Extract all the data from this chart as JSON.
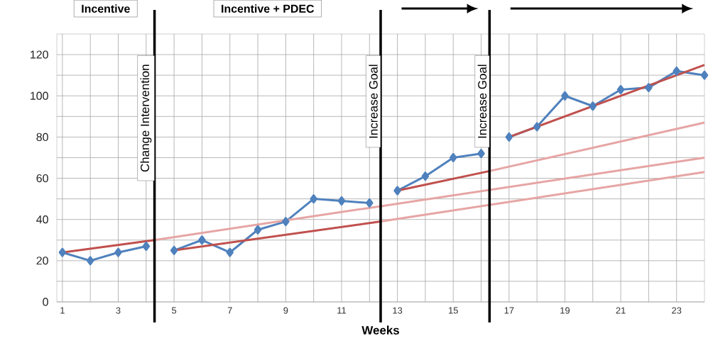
{
  "chart_data": {
    "type": "line",
    "xlabel": "Weeks",
    "xlim": [
      0.8,
      24
    ],
    "ylim": [
      0,
      130
    ],
    "xticks": [
      1,
      {
        "value": 2,
        "label": null
      },
      3,
      {
        "value": 4,
        "label": null
      },
      5,
      {
        "value": 6,
        "label": null
      },
      7,
      {
        "value": 8,
        "label": null
      },
      9,
      {
        "value": 10,
        "label": null
      },
      11,
      {
        "value": 12,
        "label": null
      },
      13,
      {
        "value": 14,
        "label": null
      },
      15,
      {
        "value": 16,
        "label": null
      },
      17,
      {
        "value": 18,
        "label": null
      },
      19,
      {
        "value": 20,
        "label": null
      },
      21,
      {
        "value": 22,
        "label": null
      },
      23
    ],
    "yticks": [
      0,
      {
        "value": 10,
        "label": null
      },
      20,
      {
        "value": 30,
        "label": null
      },
      40,
      {
        "value": 50,
        "label": null
      },
      60,
      {
        "value": 70,
        "label": null
      },
      80,
      {
        "value": 90,
        "label": null
      },
      100,
      {
        "value": 110,
        "label": null
      },
      120
    ],
    "grid": true,
    "marker": "diamond",
    "series": [
      {
        "color": "#4f81bd",
        "x": [
          1,
          2,
          3,
          4
        ],
        "values": [
          24,
          20,
          24,
          27
        ]
      },
      {
        "color": "#4f81bd",
        "x": [
          5,
          6,
          7,
          8,
          9,
          10,
          11,
          12
        ],
        "values": [
          25,
          30,
          24,
          35,
          39,
          50,
          49,
          48
        ]
      },
      {
        "color": "#4f81bd",
        "x": [
          13,
          14,
          15,
          16
        ],
        "values": [
          54,
          61,
          70,
          72
        ]
      },
      {
        "color": "#4f81bd",
        "x": [
          17,
          18,
          19,
          20,
          21,
          22,
          23,
          24
        ],
        "values": [
          80,
          85,
          100,
          95,
          103,
          104,
          112,
          110
        ]
      },
      {
        "type": "line",
        "marker": "none",
        "color": "#c0504d",
        "x": [
          1,
          4.3
        ],
        "values": [
          24,
          30
        ]
      },
      {
        "type": "line",
        "marker": "none",
        "color": "#e6a5a4",
        "x": [
          4.3,
          24
        ],
        "values": [
          30,
          70
        ]
      },
      {
        "type": "line",
        "marker": "none",
        "color": "#c0504d",
        "x": [
          5,
          12.4
        ],
        "values": [
          25,
          39
        ]
      },
      {
        "type": "line",
        "marker": "none",
        "color": "#e6a5a4",
        "x": [
          12.4,
          24
        ],
        "values": [
          39,
          63
        ]
      },
      {
        "type": "line",
        "marker": "none",
        "color": "#c0504d",
        "x": [
          13,
          16.3
        ],
        "values": [
          54,
          63.5
        ]
      },
      {
        "type": "line",
        "marker": "none",
        "color": "#e6a5a4",
        "x": [
          16.3,
          24
        ],
        "values": [
          63.5,
          87
        ]
      },
      {
        "type": "line",
        "marker": "none",
        "color": "#c0504d",
        "x": [
          17,
          24
        ],
        "values": [
          80,
          115
        ]
      }
    ],
    "ref_lines": [
      {
        "axis": "x",
        "value": 4.3,
        "label": "Change Intervention",
        "color": "#000000"
      },
      {
        "axis": "x",
        "value": 12.4,
        "label": "Increase Goal",
        "color": "#000000"
      },
      {
        "axis": "x",
        "value": 16.3,
        "label": "Increase Goal",
        "color": "#000000"
      }
    ],
    "annotations": [
      "Incentive",
      "Incentive + PDEC"
    ]
  }
}
